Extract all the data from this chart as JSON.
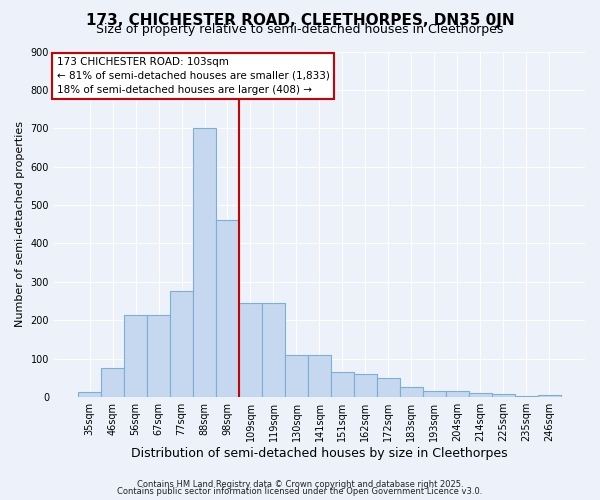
{
  "title": "173, CHICHESTER ROAD, CLEETHORPES, DN35 0JN",
  "subtitle": "Size of property relative to semi-detached houses in Cleethorpes",
  "xlabel": "Distribution of semi-detached houses by size in Cleethorpes",
  "ylabel": "Number of semi-detached properties",
  "bar_labels": [
    "35sqm",
    "46sqm",
    "56sqm",
    "67sqm",
    "77sqm",
    "88sqm",
    "98sqm",
    "109sqm",
    "119sqm",
    "130sqm",
    "141sqm",
    "151sqm",
    "162sqm",
    "172sqm",
    "183sqm",
    "193sqm",
    "204sqm",
    "214sqm",
    "225sqm",
    "235sqm",
    "246sqm"
  ],
  "bar_values": [
    13,
    77,
    213,
    215,
    277,
    700,
    460,
    245,
    245,
    110,
    110,
    65,
    60,
    50,
    27,
    17,
    16,
    10,
    8,
    4,
    5
  ],
  "bar_color": "#c5d8f0",
  "bar_edge_color": "#7bafd4",
  "vline_color": "#cc0000",
  "annotation_title": "173 CHICHESTER ROAD: 103sqm",
  "annotation_line1": "← 81% of semi-detached houses are smaller (1,833)",
  "annotation_line2": "18% of semi-detached houses are larger (408) →",
  "annotation_box_color": "#ffffff",
  "annotation_box_edge": "#cc0000",
  "ylim": [
    0,
    900
  ],
  "yticks": [
    0,
    100,
    200,
    300,
    400,
    500,
    600,
    700,
    800,
    900
  ],
  "background_color": "#edf2fa",
  "grid_color": "#ffffff",
  "footer1": "Contains HM Land Registry data © Crown copyright and database right 2025.",
  "footer2": "Contains public sector information licensed under the Open Government Licence v3.0.",
  "title_fontsize": 11,
  "subtitle_fontsize": 9,
  "xlabel_fontsize": 9,
  "ylabel_fontsize": 8,
  "tick_fontsize": 7,
  "footer_fontsize": 6,
  "annotation_fontsize": 7.5
}
